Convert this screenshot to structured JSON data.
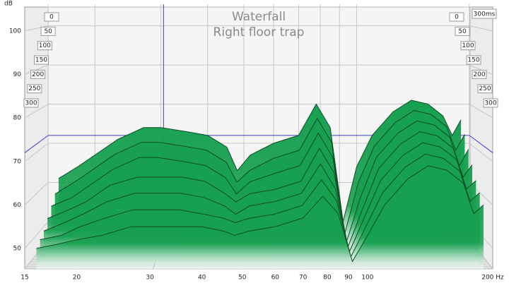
{
  "chart_data": {
    "type": "waterfall",
    "title": "Waterfall",
    "subtitle": "Right floor trap",
    "y_label": "dB",
    "time_label": "300ms",
    "color": "#17a050",
    "log_x": true,
    "grid": true,
    "x": [
      16,
      18,
      20,
      23,
      27,
      30,
      35,
      40,
      45,
      48,
      52,
      60,
      70,
      78,
      85,
      92,
      100,
      110,
      125,
      140,
      155,
      170,
      180,
      190
    ],
    "series": [
      {
        "name": "0",
        "values": [
          61,
          64,
          67,
          71,
          74,
          74,
          73,
          72,
          69,
          63,
          67,
          70,
          72,
          80,
          74,
          50,
          64,
          72,
          78,
          81,
          80,
          77,
          72,
          76
        ]
      },
      {
        "name": "50",
        "values": [
          58,
          61,
          64,
          68,
          71,
          71,
          70,
          69,
          66,
          61,
          64,
          67,
          69,
          77,
          71,
          48,
          61,
          70,
          76,
          79,
          78,
          75,
          69,
          73
        ]
      },
      {
        "name": "100",
        "values": [
          56,
          58,
          61,
          65,
          68,
          68,
          67,
          66,
          63,
          59,
          62,
          64,
          66,
          74,
          68,
          47,
          58,
          68,
          74,
          77,
          76,
          73,
          66,
          70
        ]
      },
      {
        "name": "150",
        "values": [
          54,
          56,
          58,
          62,
          64,
          64,
          64,
          63,
          60,
          58,
          60,
          61,
          63,
          71,
          65,
          47,
          56,
          66,
          72,
          75,
          74,
          71,
          64,
          67
        ]
      },
      {
        "name": "200",
        "values": [
          52,
          54,
          56,
          59,
          61,
          61,
          61,
          60,
          58,
          56,
          58,
          59,
          61,
          68,
          62,
          47,
          55,
          64,
          70,
          73,
          72,
          69,
          62,
          64
        ]
      },
      {
        "name": "250",
        "values": [
          51,
          52,
          54,
          56,
          58,
          58,
          58,
          57,
          56,
          55,
          56,
          57,
          59,
          65,
          60,
          47,
          54,
          62,
          68,
          71,
          70,
          67,
          60,
          62
        ]
      },
      {
        "name": "300",
        "values": [
          50,
          51,
          52,
          53,
          55,
          55,
          55,
          55,
          54,
          53,
          54,
          55,
          57,
          62,
          58,
          47,
          53,
          60,
          66,
          69,
          68,
          65,
          58,
          60
        ]
      }
    ],
    "xlim": [
      15,
      200
    ],
    "xticks": [
      15,
      20,
      30,
      40,
      50,
      60,
      70,
      80,
      90,
      100,
      {
        "value": 200,
        "label": "200 Hz"
      }
    ],
    "ylim": [
      45.3,
      105.5
    ],
    "yticks": [
      50,
      60,
      70,
      80,
      90,
      100
    ],
    "cursor": {
      "x": 30.5,
      "y": 72
    }
  }
}
